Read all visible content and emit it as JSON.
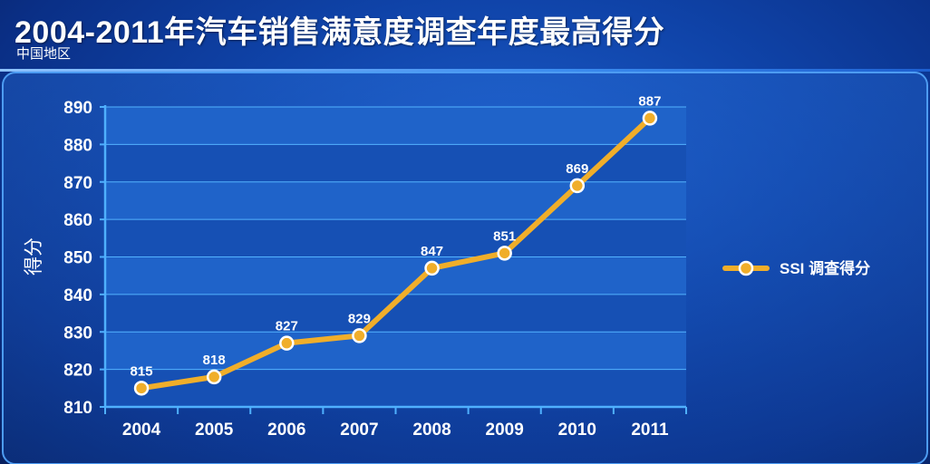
{
  "header": {
    "title": "2004-2011年汽车销售满意度调查年度最高得分",
    "subtitle": "中国地区"
  },
  "colors": {
    "line": "#f0ae2a",
    "marker_fill": "#f0ae2a",
    "marker_stroke": "#ffffff",
    "plot_band_light": "#1f63c9",
    "plot_band_dark": "#1650b4",
    "gridline": "#53b3ff",
    "axis": "#4fb0ff",
    "text": "#ffffff"
  },
  "chart_data": {
    "type": "line",
    "categories": [
      "2004",
      "2005",
      "2006",
      "2007",
      "2008",
      "2009",
      "2010",
      "2011"
    ],
    "series": [
      {
        "name": "SSI 调查得分",
        "values": [
          815,
          818,
          827,
          829,
          847,
          851,
          869,
          887
        ]
      }
    ],
    "title": "2004-2011年汽车销售满意度调查年度最高得分",
    "subtitle": "中国地区",
    "xlabel": "",
    "ylabel": "得分",
    "ylim": [
      810,
      890
    ],
    "yticks": [
      810,
      820,
      830,
      840,
      850,
      860,
      870,
      880,
      890
    ],
    "grid": true,
    "data_labels": true,
    "legend_position": "right"
  }
}
